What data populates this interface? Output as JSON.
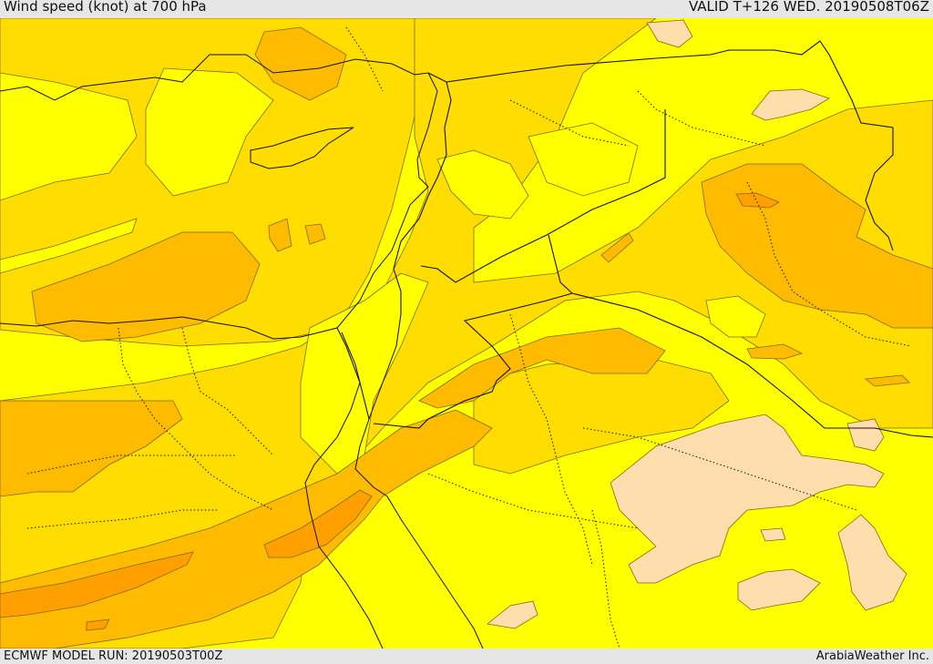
{
  "header": {
    "title": "Wind speed (knot) at 700 hPa",
    "valid": "VALID T+126 WED. 20190508T06Z"
  },
  "footer": {
    "model_run": "ECMWF MODEL RUN: 20190503T00Z",
    "credit": "ArabiaWeather Inc."
  },
  "palette": {
    "lowest": "#ffdead",
    "low": "#ffff00",
    "medium": "#ffdd00",
    "high": "#ffbb00",
    "higher": "#ffa000"
  }
}
